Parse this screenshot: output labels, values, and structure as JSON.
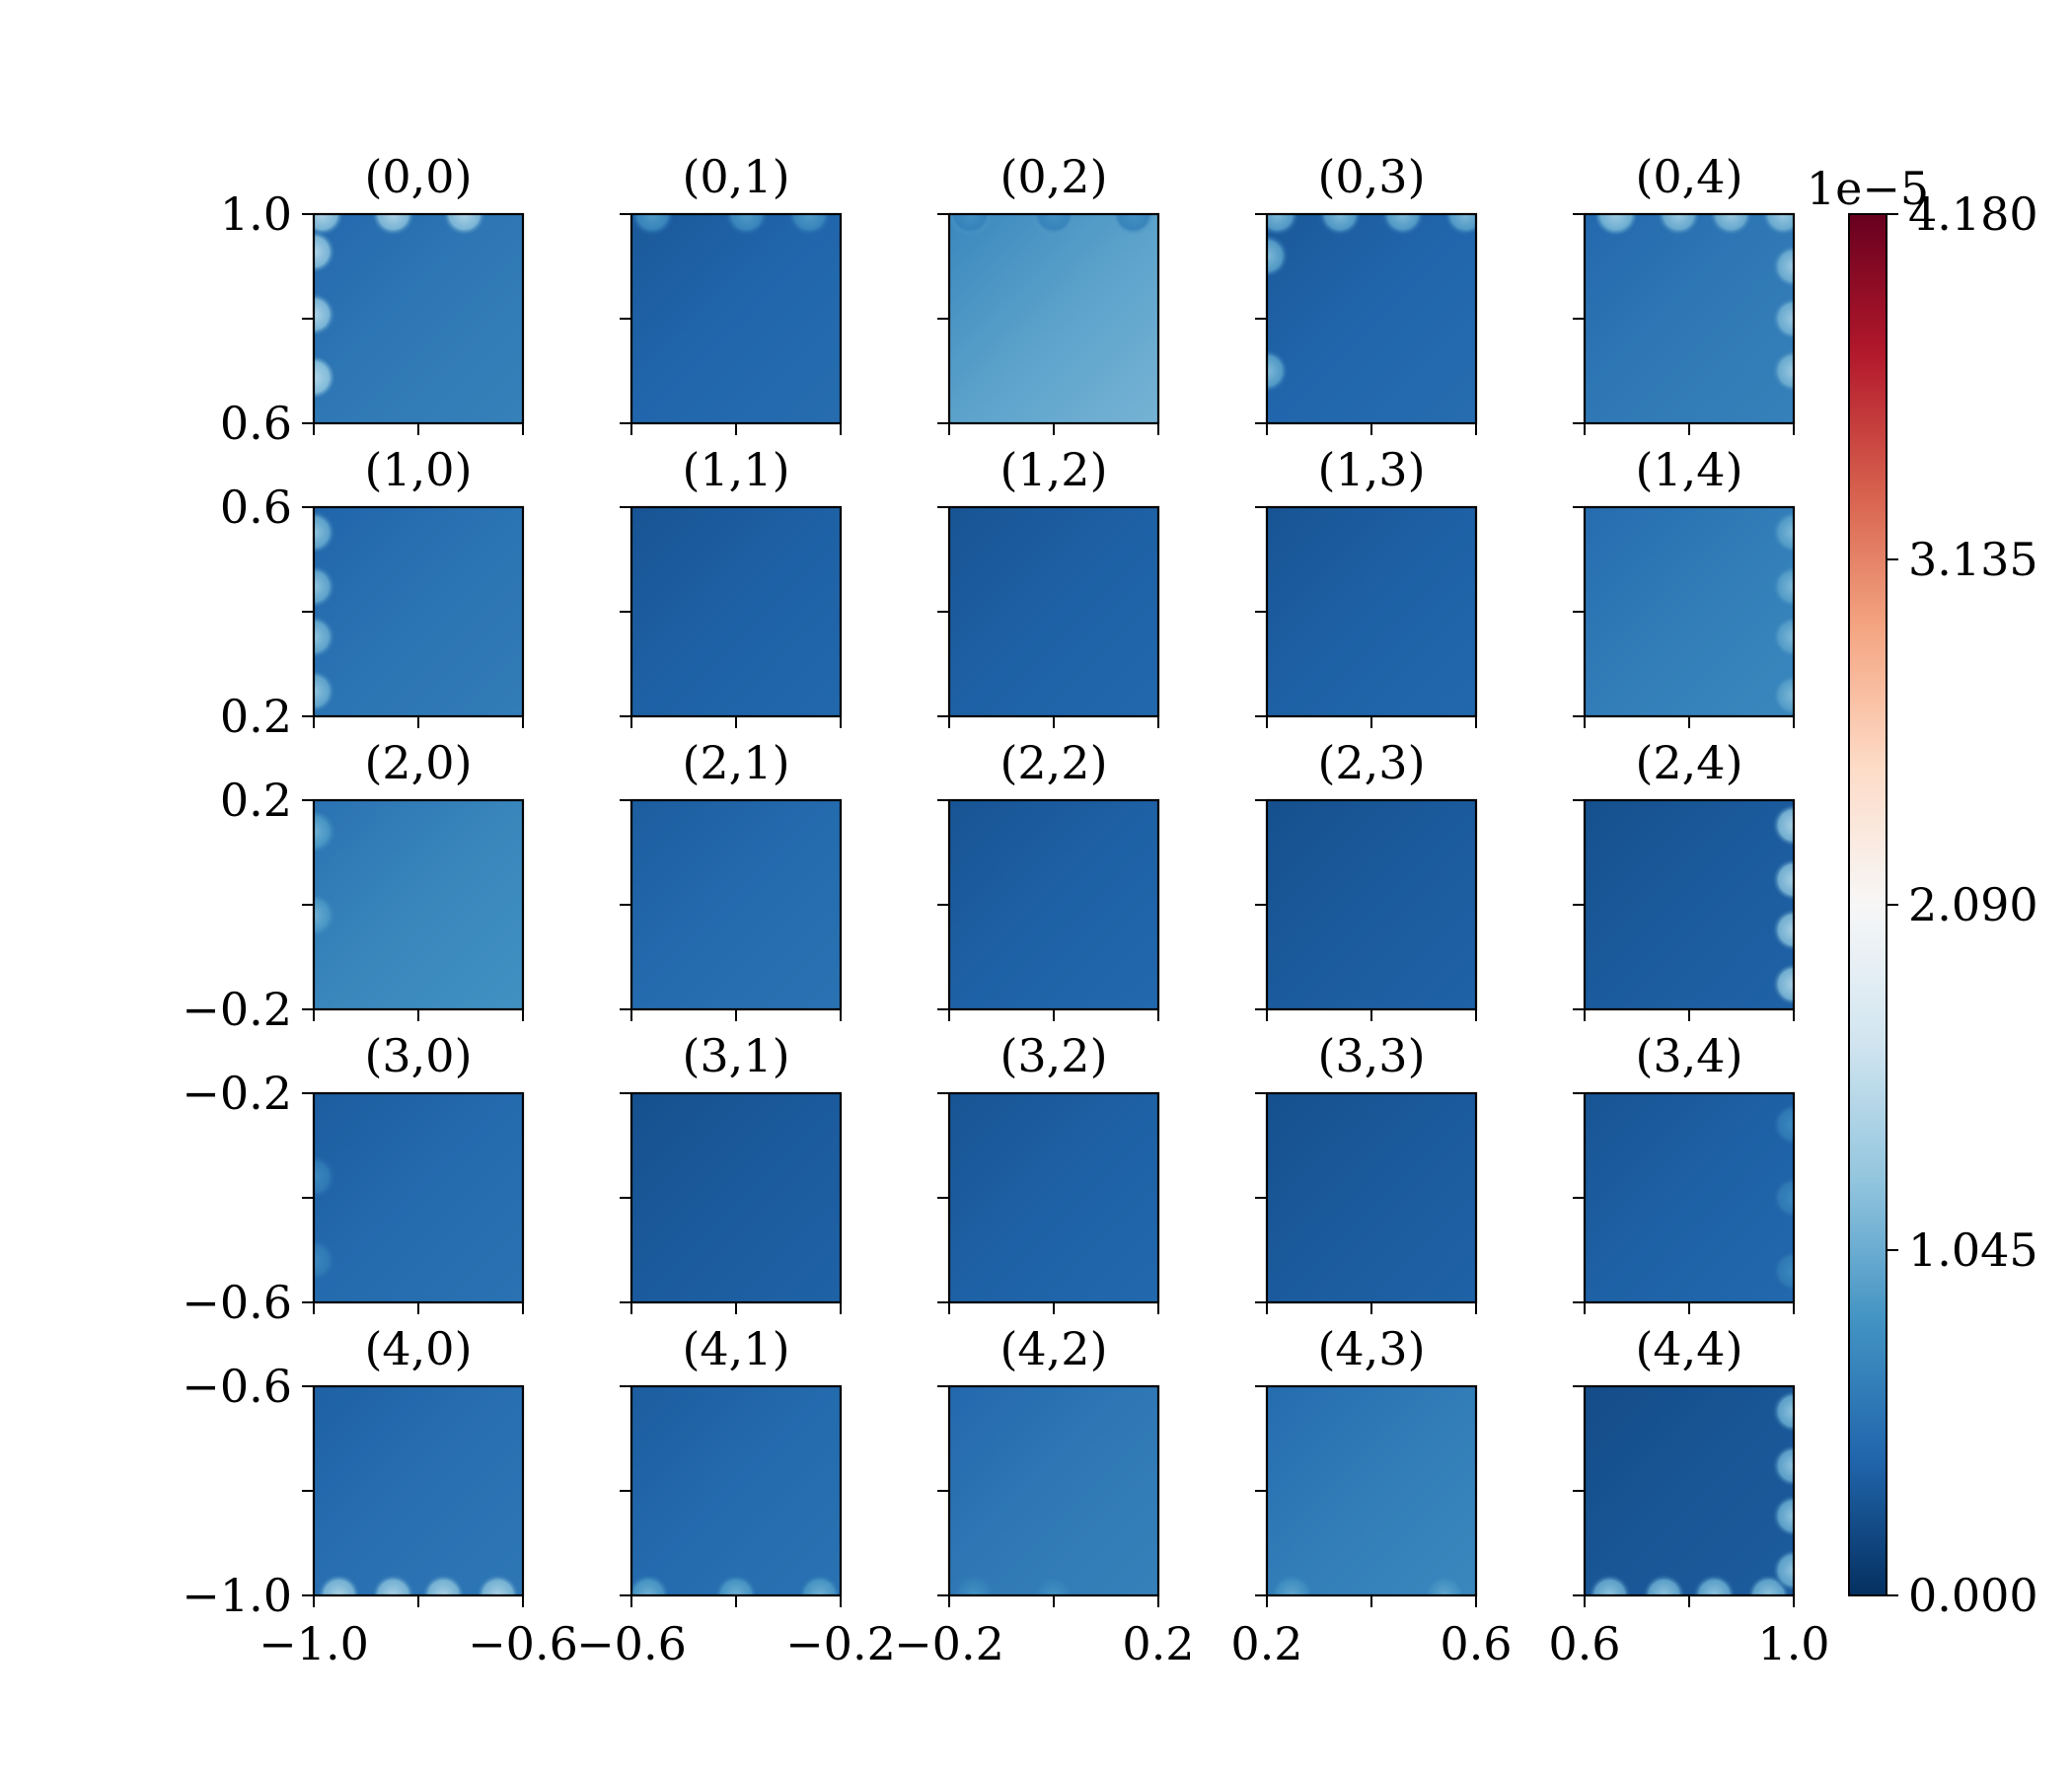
{
  "chart_data": {
    "type": "heatmap",
    "grid": {
      "rows": 5,
      "cols": 5
    },
    "panel_titles": [
      [
        "(0,0)",
        "(0,1)",
        "(0,2)",
        "(0,3)",
        "(0,4)"
      ],
      [
        "(1,0)",
        "(1,1)",
        "(1,2)",
        "(1,3)",
        "(1,4)"
      ],
      [
        "(2,0)",
        "(2,1)",
        "(2,2)",
        "(2,3)",
        "(2,4)"
      ],
      [
        "(3,0)",
        "(3,1)",
        "(3,2)",
        "(3,3)",
        "(3,4)"
      ],
      [
        "(4,0)",
        "(4,1)",
        "(4,2)",
        "(4,3)",
        "(4,4)"
      ]
    ],
    "row_y_ranges": [
      [
        0.6,
        1.0
      ],
      [
        0.2,
        0.6
      ],
      [
        -0.2,
        0.2
      ],
      [
        -0.6,
        -0.2
      ],
      [
        -1.0,
        -0.6
      ]
    ],
    "row_ytick_labels": [
      [
        "1.0",
        "0.6"
      ],
      [
        "0.6",
        "0.2"
      ],
      [
        "0.2",
        "−0.2"
      ],
      [
        "−0.2",
        "−0.6"
      ],
      [
        "−0.6",
        "−1.0"
      ]
    ],
    "col_x_ranges": [
      [
        -1.0,
        -0.6
      ],
      [
        -0.6,
        -0.2
      ],
      [
        -0.2,
        0.2
      ],
      [
        0.2,
        0.6
      ],
      [
        0.6,
        1.0
      ]
    ],
    "col_xtick_labels": [
      [
        "−1.0",
        "−0.6"
      ],
      [
        "−0.6",
        "−0.2"
      ],
      [
        "−0.2",
        "0.2"
      ],
      [
        "0.2",
        "0.6"
      ],
      [
        "0.6",
        "1.0"
      ]
    ],
    "panel_levels": [
      [
        0.14,
        0.1,
        0.23,
        0.1,
        0.14
      ],
      [
        0.13,
        0.09,
        0.09,
        0.09,
        0.15
      ],
      [
        0.17,
        0.11,
        0.09,
        0.08,
        0.08
      ],
      [
        0.11,
        0.08,
        0.09,
        0.08,
        0.09
      ],
      [
        0.12,
        0.11,
        0.14,
        0.15,
        0.07
      ]
    ],
    "colorbar": {
      "colormap": "RdBu_r",
      "min": 0.0,
      "max": 4.18,
      "ticks": [
        "0.000",
        "1.045",
        "2.090",
        "3.135",
        "4.180"
      ],
      "scale_label": "1e−5"
    },
    "grid_lines": false,
    "colors": {
      "dark_blue": "#053061",
      "blue": "#2166ac",
      "light_blue": "#4393c3",
      "pale_blue": "#92c5de",
      "near_white": "#f7f7f7",
      "salmon": "#f4a582",
      "red": "#d6604d",
      "dark_red": "#67001f"
    }
  }
}
